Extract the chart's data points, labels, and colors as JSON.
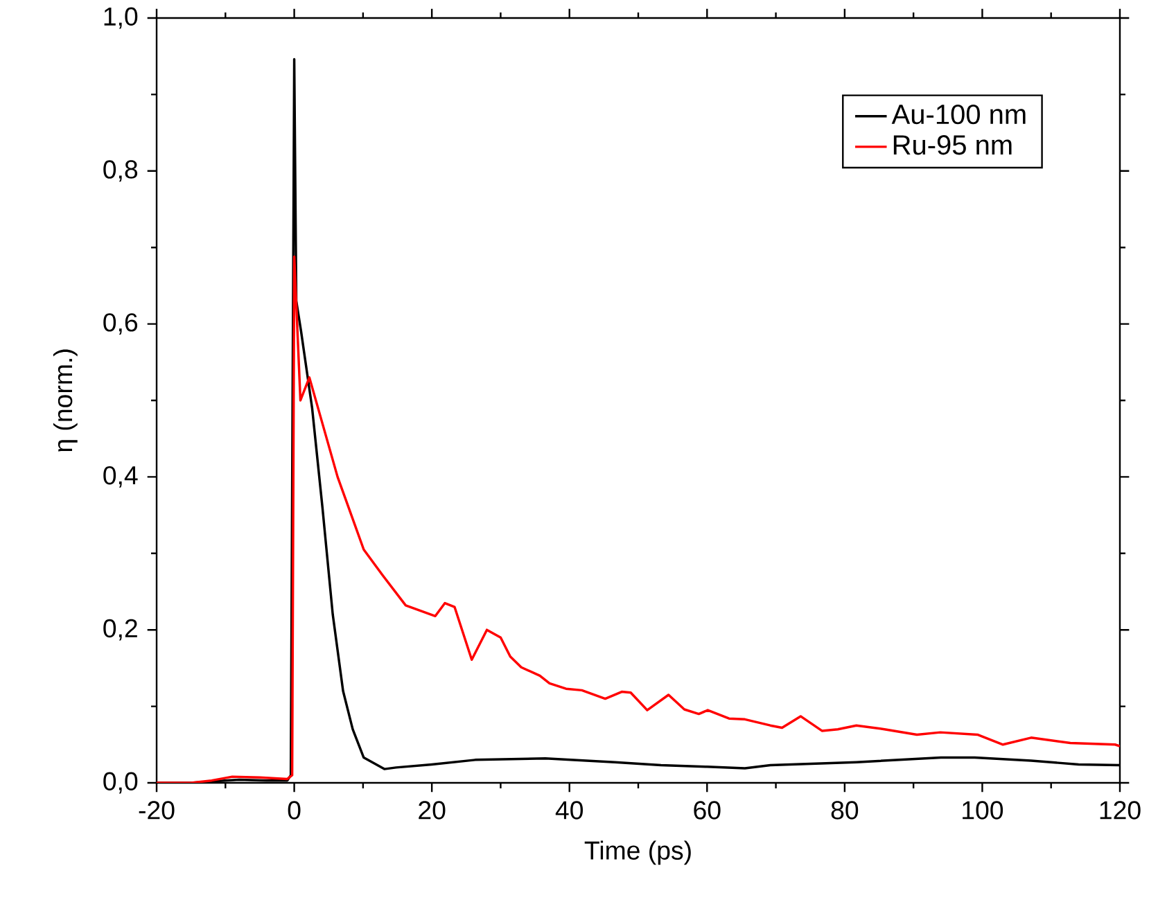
{
  "chart_data": {
    "type": "line",
    "xlabel": "Time (ps)",
    "ylabel": "η (norm.)",
    "xlim": [
      -20,
      120
    ],
    "ylim": [
      0,
      1
    ],
    "xticks": [
      -20,
      0,
      20,
      40,
      60,
      80,
      100,
      120
    ],
    "yticks": [
      {
        "value": 0,
        "label": "0,0"
      },
      {
        "value": 0.2,
        "label": "0,2"
      },
      {
        "value": 0.4,
        "label": "0,4"
      },
      {
        "value": 0.6,
        "label": "0,6"
      },
      {
        "value": 0.8,
        "label": "0,8"
      },
      {
        "value": 1,
        "label": "1,0"
      }
    ],
    "legend": "top right",
    "grid": false,
    "line_style": "solid",
    "series": [
      {
        "name": "Au-100 nm",
        "color": "#000000",
        "x": [
          -20,
          -15,
          -10,
          -8,
          -4,
          -1,
          -0.5,
          0,
          0.3,
          1,
          2.6,
          4.1,
          5.6,
          7.1,
          8.5,
          10.1,
          13.1,
          14.8,
          20,
          26.3,
          36.5,
          46.6,
          53.3,
          60,
          65.5,
          69.2,
          81.7,
          94,
          98.9,
          107.1,
          114,
          120
        ],
        "values": [
          0,
          0,
          0.003,
          0.004,
          0.003,
          0.003,
          0.01,
          0.946,
          0.63,
          0.59,
          0.49,
          0.36,
          0.22,
          0.12,
          0.07,
          0.033,
          0.018,
          0.02,
          0.024,
          0.03,
          0.032,
          0.027,
          0.023,
          0.021,
          0.019,
          0.023,
          0.027,
          0.033,
          0.033,
          0.029,
          0.024,
          0.023
        ]
      },
      {
        "name": "Ru-95 nm",
        "color": "#ff0000",
        "x": [
          -20,
          -15,
          -12,
          -9,
          -5,
          -1,
          -0.3,
          0,
          0.9,
          2.2,
          6.3,
          10.1,
          12.8,
          16.2,
          20.5,
          21.9,
          23.3,
          25.8,
          28,
          30,
          31.4,
          33,
          35.7,
          37.1,
          39.5,
          41.8,
          45.2,
          47.6,
          48.9,
          51.3,
          54.4,
          56.7,
          58.8,
          60.1,
          63.2,
          65.5,
          69.2,
          70.9,
          73.6,
          76.7,
          79,
          81.7,
          85.8,
          90.5,
          93.9,
          99.3,
          103,
          107.1,
          112.8,
          119.3,
          120
        ],
        "values": [
          0,
          0,
          0.003,
          0.008,
          0.007,
          0.005,
          0.01,
          0.688,
          0.5,
          0.53,
          0.4,
          0.305,
          0.272,
          0.232,
          0.218,
          0.235,
          0.23,
          0.161,
          0.2,
          0.19,
          0.165,
          0.151,
          0.14,
          0.13,
          0.123,
          0.121,
          0.11,
          0.119,
          0.118,
          0.095,
          0.115,
          0.096,
          0.09,
          0.095,
          0.084,
          0.083,
          0.075,
          0.072,
          0.087,
          0.068,
          0.07,
          0.075,
          0.07,
          0.063,
          0.066,
          0.063,
          0.05,
          0.059,
          0.052,
          0.05,
          0.048
        ]
      }
    ]
  }
}
